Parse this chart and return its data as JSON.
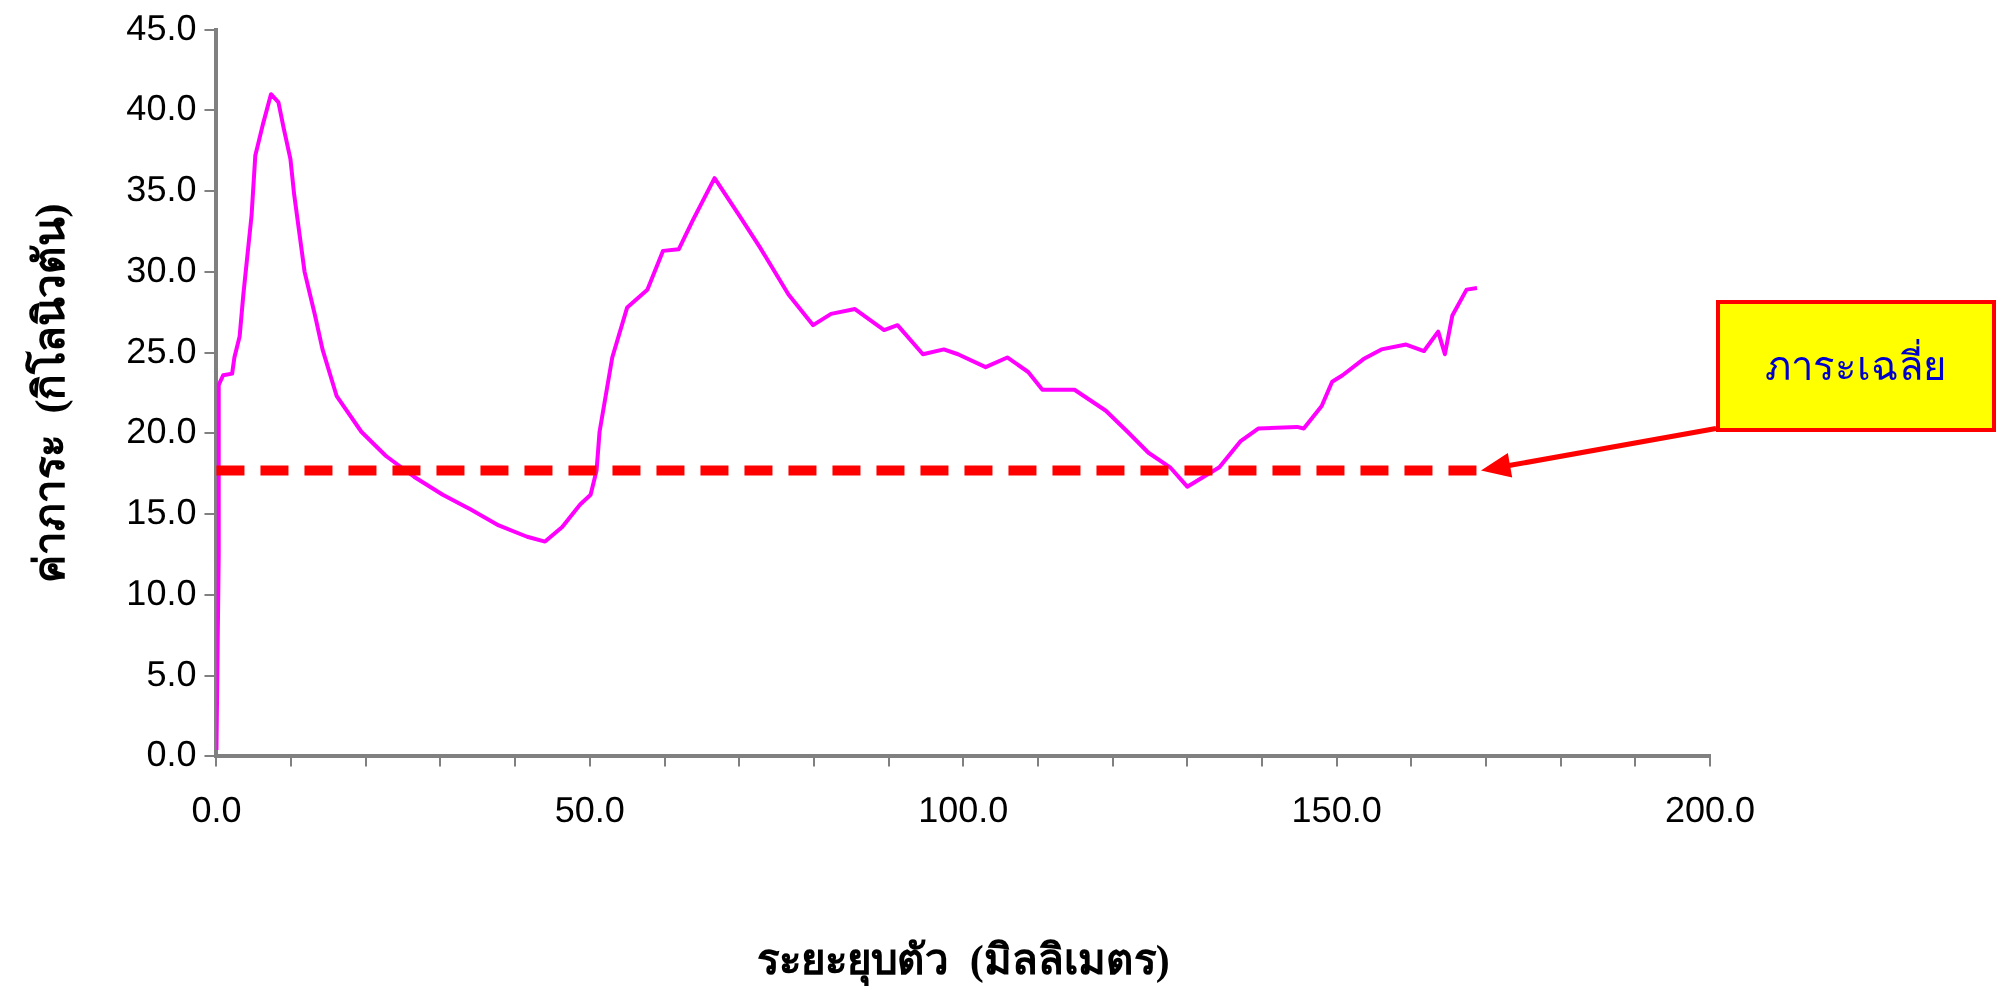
{
  "chart_data": {
    "type": "line",
    "xlabel": "ระยะยุบตัว  (มิลลิเมตร)",
    "ylabel": "ค่าภาระ  (กิโลนิวตัน)",
    "xlim": [
      0,
      200
    ],
    "ylim": [
      0,
      45
    ],
    "xticks": [
      {
        "value": 0,
        "label": "0.0"
      },
      {
        "value": 10,
        "label": null
      },
      {
        "value": 20,
        "label": null
      },
      {
        "value": 30,
        "label": null
      },
      {
        "value": 40,
        "label": null
      },
      {
        "value": 50,
        "label": "50.0"
      },
      {
        "value": 60,
        "label": null
      },
      {
        "value": 70,
        "label": null
      },
      {
        "value": 80,
        "label": null
      },
      {
        "value": 90,
        "label": null
      },
      {
        "value": 100,
        "label": "100.0"
      },
      {
        "value": 110,
        "label": null
      },
      {
        "value": 120,
        "label": null
      },
      {
        "value": 130,
        "label": null
      },
      {
        "value": 140,
        "label": null
      },
      {
        "value": 150,
        "label": "150.0"
      },
      {
        "value": 160,
        "label": null
      },
      {
        "value": 170,
        "label": null
      },
      {
        "value": 180,
        "label": null
      },
      {
        "value": 190,
        "label": null
      },
      {
        "value": 200,
        "label": "200.0"
      }
    ],
    "yticks": [
      {
        "value": 0,
        "label": "0.0"
      },
      {
        "value": 5,
        "label": "5.0"
      },
      {
        "value": 10,
        "label": "10.0"
      },
      {
        "value": 15,
        "label": "15.0"
      },
      {
        "value": 20,
        "label": "20.0"
      },
      {
        "value": 25,
        "label": "25.0"
      },
      {
        "value": 30,
        "label": "30.0"
      },
      {
        "value": 35,
        "label": "35.0"
      },
      {
        "value": 40,
        "label": "40.0"
      },
      {
        "value": 45,
        "label": "45.0"
      }
    ],
    "grid": false,
    "legend": false,
    "marker": "none",
    "line_style": "solid",
    "series": [
      {
        "color": "#ff00ff",
        "x": [
          0,
          0.3,
          0.3,
          0.9,
          2.1,
          2.4,
          3.1,
          3.6,
          4.7,
          5.2,
          6.2,
          7.3,
          8.3,
          9,
          9.9,
          10.4,
          11.8,
          13.2,
          14.2,
          16.1,
          19.4,
          22.7,
          26.5,
          30.3,
          34,
          37.8,
          41.6,
          44,
          46.3,
          48.7,
          50.1,
          50.9,
          51.3,
          53,
          55,
          57.7,
          59.8,
          61.9,
          63.8,
          66.7,
          70,
          72.8,
          76.6,
          79.9,
          82.3,
          85.5,
          89.4,
          91.2,
          94.6,
          97.4,
          99.3,
          103,
          105.9,
          108.7,
          110.6,
          114.9,
          119.1,
          122,
          124.8,
          127.7,
          130,
          134.3,
          137.1,
          139.5,
          144.7,
          145.6,
          148,
          149.4,
          150.8,
          153.6,
          156,
          159.3,
          161.7,
          163.6,
          164.5,
          165.5,
          167.4,
          168.8
        ],
        "values": [
          0.4,
          12.5,
          23,
          23.6,
          23.7,
          24.7,
          26,
          28.6,
          33.5,
          37.2,
          39.1,
          41,
          40.5,
          38.9,
          37,
          34.8,
          30,
          27.3,
          25.2,
          22.3,
          20.1,
          18.6,
          17.3,
          16.2,
          15.3,
          14.3,
          13.6,
          13.3,
          14.2,
          15.6,
          16.2,
          17.7,
          20.1,
          24.7,
          27.8,
          28.9,
          31.3,
          31.4,
          33.2,
          35.8,
          33.5,
          31.5,
          28.6,
          26.7,
          27.4,
          27.7,
          26.4,
          26.7,
          24.9,
          25.2,
          24.9,
          24.1,
          24.7,
          23.8,
          22.7,
          22.7,
          21.4,
          20.1,
          18.8,
          17.9,
          16.7,
          17.9,
          19.5,
          20.3,
          20.4,
          20.3,
          21.7,
          23.2,
          23.6,
          24.6,
          25.2,
          25.5,
          25.1,
          26.3,
          24.9,
          27.3,
          28.9,
          29
        ]
      }
    ],
    "ref_lines": [
      {
        "axis": "y",
        "value": 17.7,
        "color": "#ff0000",
        "line_style": "dashed"
      }
    ],
    "annotations": [
      "ภาระเฉลี่ย"
    ]
  }
}
